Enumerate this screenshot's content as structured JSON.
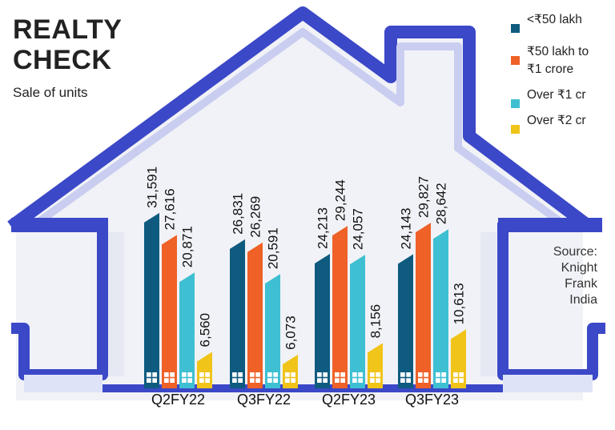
{
  "header": {
    "title_line1": "REALTY",
    "title_line2": "CHECK",
    "subtitle": "Sale of units"
  },
  "legend": {
    "items": [
      {
        "label": "<₹50 lakh",
        "color": "#0e5b7f"
      },
      {
        "label_line1": "₹50 lakh to",
        "label_line2": "₹1 crore",
        "color": "#ef6127"
      },
      {
        "label": "Over ₹1 cr",
        "color": "#3ec0d2"
      },
      {
        "label": "Over ₹2 cr",
        "color": "#f0c419"
      }
    ]
  },
  "source": {
    "line1": "Source:",
    "line2": "Knight",
    "line3": "Frank",
    "line4": "India"
  },
  "chart_data": {
    "type": "bar",
    "categories": [
      "Q2FY22",
      "Q3FY22",
      "Q2FY23",
      "Q3FY23"
    ],
    "series": [
      {
        "name": "<₹50 lakh",
        "color": "#0e5b7f",
        "values": [
          31591,
          26831,
          24213,
          24143
        ],
        "labels": [
          "31,591",
          "26,831",
          "24,213",
          "24,143"
        ]
      },
      {
        "name": "₹50 lakh to ₹1 crore",
        "color": "#ef6127",
        "values": [
          27616,
          26269,
          29244,
          29827
        ],
        "labels": [
          "27,616",
          "26,269",
          "29,244",
          "29,827"
        ]
      },
      {
        "name": "Over ₹1 cr",
        "color": "#3ec0d2",
        "values": [
          20871,
          20591,
          24057,
          28642
        ],
        "labels": [
          "20,871",
          "20,591",
          "24,057",
          "28,642"
        ]
      },
      {
        "name": "Over ₹2 cr",
        "color": "#f0c419",
        "values": [
          6560,
          6073,
          8156,
          10613
        ],
        "labels": [
          "6,560",
          "6,073",
          "8,156",
          "10,613"
        ]
      }
    ],
    "ylim": [
      0,
      32000
    ],
    "legend_position": "top-right",
    "grid": false
  }
}
